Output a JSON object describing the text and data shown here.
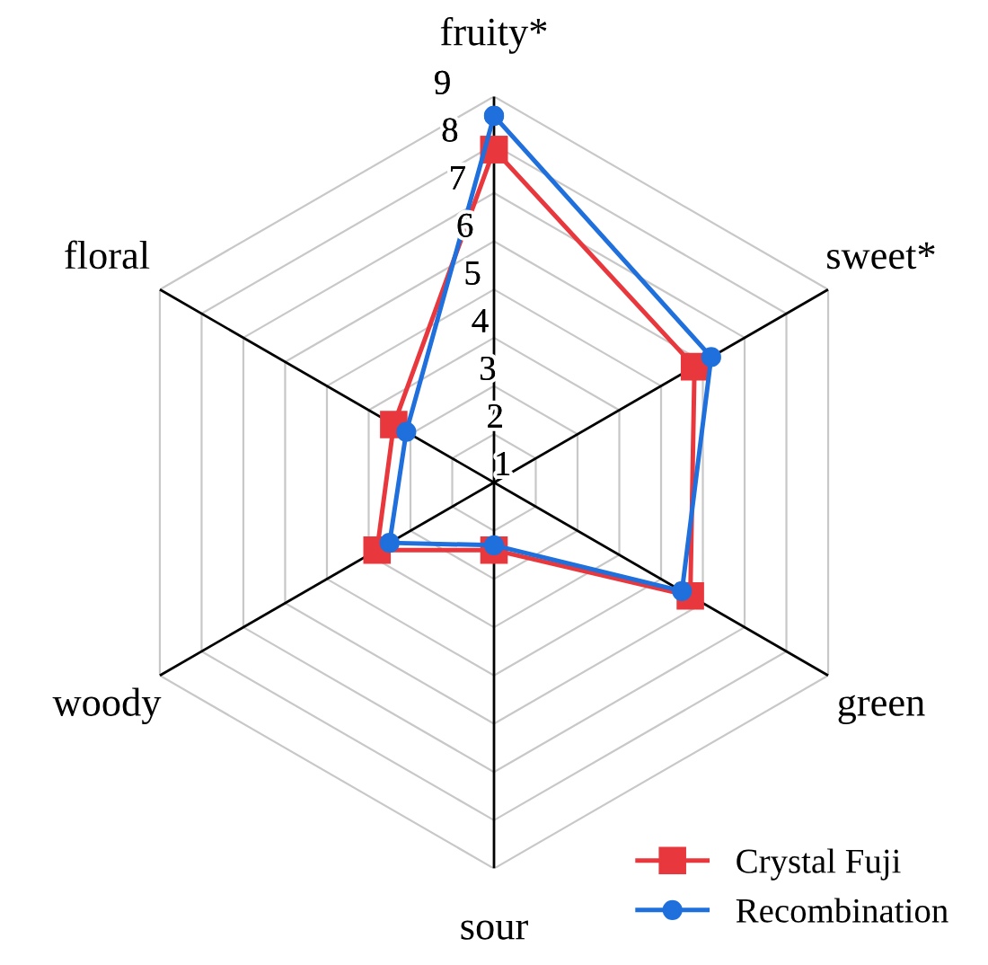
{
  "chart_data": {
    "type": "radar",
    "categories": [
      "fruity*",
      "sweet*",
      "green",
      "sour",
      "woody",
      "floral"
    ],
    "ylim": [
      1,
      9
    ],
    "yticks": [
      1,
      2,
      3,
      4,
      5,
      6,
      7,
      8,
      9
    ],
    "grid": true,
    "legend": "bottom right",
    "series": [
      {
        "name": "Crystal Fuji",
        "color": "#e8383d",
        "marker": "square",
        "values": [
          7.9,
          5.8,
          5.7,
          2.4,
          3.8,
          3.4
        ]
      },
      {
        "name": "Recombination",
        "color": "#1f6fdc",
        "marker": "circle",
        "values": [
          8.6,
          6.2,
          5.5,
          2.3,
          3.5,
          3.1
        ]
      }
    ]
  }
}
